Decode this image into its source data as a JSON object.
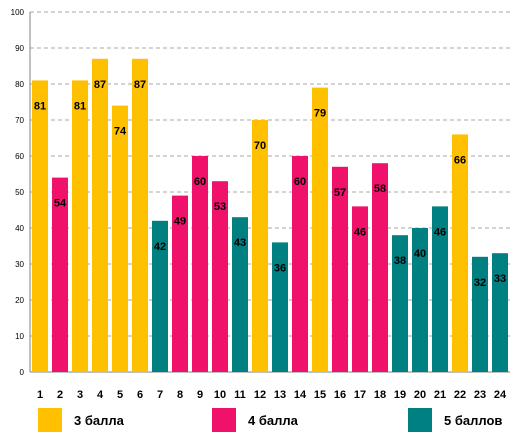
{
  "chart_data": {
    "type": "bar",
    "categories": [
      "1",
      "2",
      "3",
      "4",
      "5",
      "6",
      "7",
      "8",
      "9",
      "10",
      "11",
      "12",
      "13",
      "14",
      "15",
      "16",
      "17",
      "18",
      "19",
      "20",
      "21",
      "22",
      "23",
      "24"
    ],
    "values": [
      81,
      54,
      81,
      87,
      74,
      87,
      42,
      49,
      60,
      53,
      43,
      70,
      36,
      60,
      79,
      57,
      46,
      58,
      38,
      40,
      46,
      66,
      32,
      33
    ],
    "groups": [
      1,
      2,
      1,
      1,
      1,
      1,
      3,
      2,
      2,
      2,
      3,
      1,
      3,
      2,
      1,
      2,
      2,
      2,
      3,
      3,
      3,
      1,
      3,
      3
    ],
    "ylim": [
      0,
      100
    ],
    "yticks": [
      0,
      10,
      20,
      30,
      40,
      50,
      60,
      70,
      80,
      90,
      100
    ],
    "grid": true,
    "title": "",
    "xlabel": "",
    "ylabel": "",
    "legend_position": "bottom",
    "legend": [
      {
        "label": "3 балла",
        "color": "#FFC000"
      },
      {
        "label": "4 балла",
        "color": "#F0116A"
      },
      {
        "label": "5 баллов",
        "color": "#008080"
      }
    ]
  }
}
